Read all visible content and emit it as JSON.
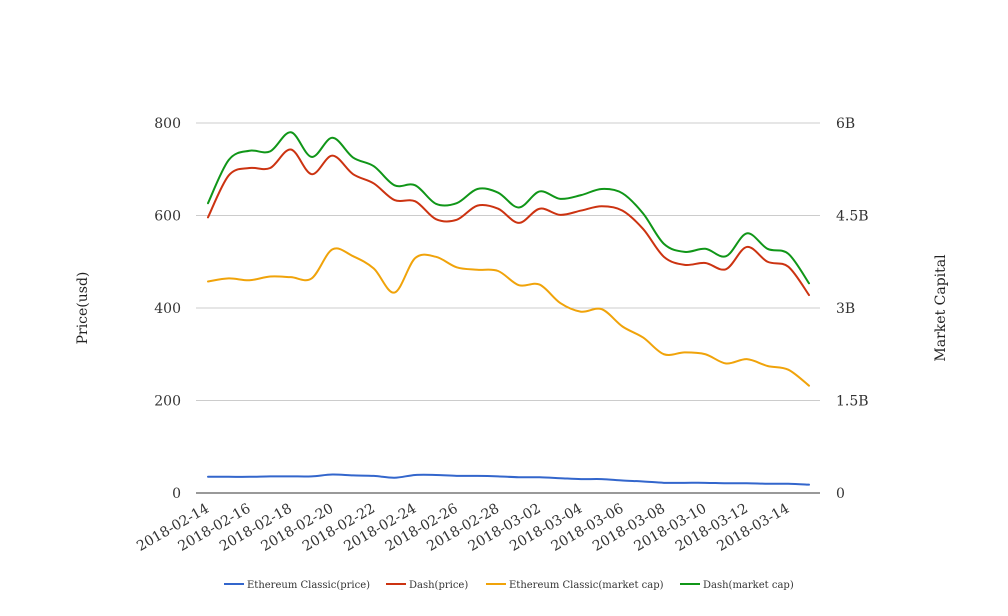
{
  "chart_data": {
    "type": "line",
    "x": [
      "2018-02-14",
      "2018-02-15",
      "2018-02-16",
      "2018-02-17",
      "2018-02-18",
      "2018-02-19",
      "2018-02-20",
      "2018-02-21",
      "2018-02-22",
      "2018-02-23",
      "2018-02-24",
      "2018-02-25",
      "2018-02-26",
      "2018-02-27",
      "2018-02-28",
      "2018-03-01",
      "2018-03-02",
      "2018-03-03",
      "2018-03-04",
      "2018-03-05",
      "2018-03-06",
      "2018-03-07",
      "2018-03-08",
      "2018-03-09",
      "2018-03-10",
      "2018-03-11",
      "2018-03-12",
      "2018-03-13",
      "2018-03-14",
      "2018-03-15"
    ],
    "x_tick_labels": [
      "2018-02-14",
      "2018-02-16",
      "2018-02-18",
      "2018-02-20",
      "2018-02-22",
      "2018-02-24",
      "2018-02-26",
      "2018-02-28",
      "2018-03-02",
      "2018-03-04",
      "2018-03-06",
      "2018-03-08",
      "2018-03-10",
      "2018-03-12",
      "2018-03-14"
    ],
    "ylabel": "Price(usd)",
    "y2label": "Market Capital",
    "ylim": [
      0,
      800
    ],
    "y2lim": [
      0,
      6000000000
    ],
    "y_ticks": [
      "0",
      "200",
      "400",
      "600",
      "800"
    ],
    "y2_ticks": [
      "0",
      "1.5B",
      "3B",
      "4.5B",
      "6B"
    ],
    "grid": true,
    "legend_position": "bottom",
    "series": [
      {
        "name": "Ethereum Classic(price)",
        "axis": "left",
        "color": "#3366cc",
        "values": [
          35,
          35,
          35,
          36,
          36,
          36,
          40,
          38,
          37,
          33,
          39,
          39,
          37,
          37,
          36,
          34,
          34,
          32,
          30,
          30,
          27,
          25,
          22,
          22,
          22,
          21,
          21,
          20,
          20,
          18
        ]
      },
      {
        "name": "Dash(price)",
        "axis": "right",
        "color": "#cc3311",
        "values": [
          4470000000,
          5150000000,
          5270000000,
          5270000000,
          5570000000,
          5170000000,
          5470000000,
          5170000000,
          5020000000,
          4750000000,
          4730000000,
          4440000000,
          4430000000,
          4660000000,
          4610000000,
          4380000000,
          4610000000,
          4510000000,
          4580000000,
          4650000000,
          4580000000,
          4280000000,
          3830000000,
          3700000000,
          3730000000,
          3630000000,
          3990000000,
          3750000000,
          3670000000,
          3210000000
        ]
      },
      {
        "name": "Ethereum Classic(market cap)",
        "axis": "right",
        "color": "#f0a30a",
        "values": [
          3430000000,
          3480000000,
          3450000000,
          3510000000,
          3500000000,
          3480000000,
          3950000000,
          3840000000,
          3640000000,
          3250000000,
          3810000000,
          3830000000,
          3660000000,
          3620000000,
          3600000000,
          3370000000,
          3380000000,
          3080000000,
          2940000000,
          2980000000,
          2700000000,
          2520000000,
          2250000000,
          2280000000,
          2250000000,
          2100000000,
          2170000000,
          2060000000,
          2000000000,
          1740000000
        ]
      },
      {
        "name": "Dash(market cap)",
        "axis": "right",
        "color": "#109618",
        "values": [
          4700000000,
          5400000000,
          5550000000,
          5540000000,
          5850000000,
          5450000000,
          5760000000,
          5440000000,
          5300000000,
          4990000000,
          4990000000,
          4690000000,
          4700000000,
          4930000000,
          4870000000,
          4630000000,
          4890000000,
          4770000000,
          4830000000,
          4930000000,
          4860000000,
          4530000000,
          4040000000,
          3910000000,
          3960000000,
          3840000000,
          4210000000,
          3960000000,
          3880000000,
          3400000000
        ]
      }
    ]
  }
}
